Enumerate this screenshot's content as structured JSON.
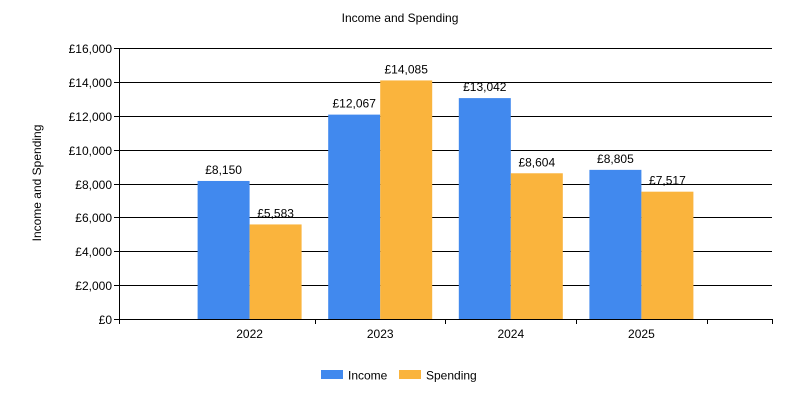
{
  "chart_data": {
    "type": "bar",
    "title": "Income and Spending",
    "ylabel": "Income and Spending",
    "xlabel": "",
    "categories": [
      "2022",
      "2023",
      "2024",
      "2025"
    ],
    "series": [
      {
        "name": "Income",
        "values": [
          8150,
          12067,
          13042,
          8805
        ],
        "labels": [
          "£8,150",
          "£12,067",
          "£13,042",
          "£8,805"
        ],
        "color": "#4189EE"
      },
      {
        "name": "Spending",
        "values": [
          5583,
          14085,
          8604,
          7517
        ],
        "labels": [
          "£5,583",
          "£14,085",
          "£8,604",
          "£7,517"
        ],
        "color": "#FAB43D"
      }
    ],
    "ylim": [
      0,
      16000
    ],
    "yticks": [
      0,
      2000,
      4000,
      6000,
      8000,
      10000,
      12000,
      14000,
      16000
    ],
    "ytick_labels": [
      "£0",
      "£2,000",
      "£4,000",
      "£6,000",
      "£8,000",
      "£10,000",
      "£12,000",
      "£14,000",
      "£16,000"
    ],
    "grid": true,
    "legend_position": "bottom-center"
  }
}
